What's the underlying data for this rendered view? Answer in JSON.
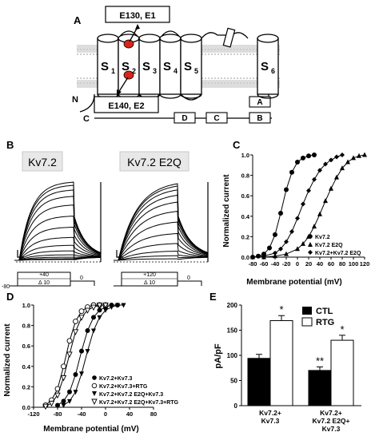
{
  "panels": {
    "A": "A",
    "B": "B",
    "C": "C",
    "D": "D",
    "E": "E"
  },
  "topology": {
    "segments": [
      "S",
      "S",
      "S",
      "S",
      "S",
      "S"
    ],
    "subscripts": [
      "1",
      "2",
      "3",
      "4",
      "5",
      "6"
    ],
    "box_top": "E130, E1",
    "box_bottom": "E140, E2",
    "n_label": "N",
    "c_label": "C",
    "helices": [
      "A",
      "B",
      "C",
      "D"
    ]
  },
  "traces": {
    "label_left": "Kv7.2",
    "label_right": "Kv7.2 E2Q",
    "protocol_left": {
      "top": "+40",
      "step": "Δ 10",
      "hold": "-80",
      "tail": "0"
    },
    "protocol_right": {
      "top": "+120",
      "step": "Δ 10",
      "hold": "-80",
      "tail": "0"
    },
    "left_amplitudes": [
      0.01,
      0.02,
      0.04,
      0.07,
      0.12,
      0.19,
      0.29,
      0.42,
      0.56,
      0.7,
      0.81,
      0.89,
      0.95,
      0.99
    ],
    "right_amplitudes": [
      0.02,
      0.06,
      0.12,
      0.22,
      0.35,
      0.5,
      0.64,
      0.76,
      0.85,
      0.92,
      0.97,
      1.0
    ]
  },
  "chart_data": [
    {
      "type": "scatter",
      "panel": "C",
      "xlabel": "Membrane potential (mV)",
      "ylabel": "Normalized current",
      "xlim": [
        -80,
        120
      ],
      "ylim": [
        0,
        1.0
      ],
      "xticks": [
        "-80",
        "-60",
        "-40",
        "-20",
        "0",
        "20",
        "40",
        "60",
        "80",
        "100",
        "120"
      ],
      "yticks": [
        "0.0",
        "0.2",
        "0.4",
        "0.6",
        "0.8",
        "1.0"
      ],
      "legend_position": "bottom-right",
      "series": [
        {
          "name": "Kv7.2",
          "marker": "circle-filled",
          "x": [
            -80,
            -70,
            -60,
            -50,
            -40,
            -30,
            -20,
            -10,
            0,
            10,
            20,
            30
          ],
          "y": [
            0.0,
            0.01,
            0.03,
            0.09,
            0.22,
            0.43,
            0.66,
            0.83,
            0.93,
            0.97,
            0.99,
            1.0
          ]
        },
        {
          "name": "Kv7.2 E2Q",
          "marker": "triangle-filled",
          "x": [
            -80,
            -60,
            -40,
            -20,
            0,
            10,
            20,
            30,
            40,
            50,
            60,
            70,
            80,
            90,
            100,
            110,
            120
          ],
          "y": [
            0.0,
            0.0,
            0.01,
            0.03,
            0.08,
            0.13,
            0.2,
            0.3,
            0.42,
            0.55,
            0.67,
            0.78,
            0.87,
            0.93,
            0.97,
            0.99,
            1.0
          ]
        },
        {
          "name": "Kv7.2+Kv7.2 E2Q",
          "marker": "diamond-filled",
          "x": [
            -80,
            -60,
            -40,
            -30,
            -20,
            -10,
            0,
            10,
            20,
            30,
            40,
            50,
            60,
            70,
            80
          ],
          "y": [
            0.0,
            0.01,
            0.04,
            0.08,
            0.15,
            0.25,
            0.38,
            0.52,
            0.65,
            0.76,
            0.85,
            0.91,
            0.95,
            0.98,
            1.0
          ]
        }
      ]
    },
    {
      "type": "scatter",
      "panel": "D",
      "xlabel": "Membrane potential (mV)",
      "ylabel": "Normalized current",
      "xlim": [
        -120,
        80
      ],
      "ylim": [
        0,
        1.0
      ],
      "xticks": [
        "-120",
        "-80",
        "-40",
        "0",
        "40",
        "80"
      ],
      "yticks": [
        "0.0",
        "0.2",
        "0.4",
        "0.6",
        "0.8",
        "1.0"
      ],
      "legend_position": "bottom-right",
      "series": [
        {
          "name": "Kv7.2+Kv7.3",
          "marker": "circle-filled",
          "x": [
            -80,
            -70,
            -60,
            -50,
            -40,
            -30,
            -20,
            -10,
            0,
            10,
            20
          ],
          "y": [
            0.02,
            0.06,
            0.15,
            0.32,
            0.55,
            0.75,
            0.88,
            0.95,
            0.98,
            1.0,
            1.0
          ]
        },
        {
          "name": "Kv7.2+Kv7.3+RTG",
          "marker": "circle-open",
          "x": [
            -100,
            -90,
            -80,
            -70,
            -60,
            -50,
            -40,
            -30,
            -20,
            -10,
            0
          ],
          "y": [
            0.02,
            0.07,
            0.18,
            0.4,
            0.65,
            0.84,
            0.94,
            0.98,
            1.0,
            1.0,
            1.0
          ]
        },
        {
          "name": "Kv7.2+Kv7.2 E2Q+Kv7.3",
          "marker": "triangle-down-filled",
          "x": [
            -70,
            -60,
            -50,
            -40,
            -30,
            -20,
            -10,
            0,
            10,
            20,
            30
          ],
          "y": [
            0.02,
            0.06,
            0.15,
            0.33,
            0.55,
            0.75,
            0.88,
            0.95,
            0.98,
            1.0,
            1.0
          ]
        },
        {
          "name": "Kv7.2+Kv7.2 E2Q+Kv7.3+RTG",
          "marker": "triangle-down-open",
          "x": [
            -100,
            -90,
            -80,
            -70,
            -60,
            -50,
            -40,
            -30,
            -20,
            -10,
            0
          ],
          "y": [
            0.01,
            0.04,
            0.12,
            0.29,
            0.52,
            0.74,
            0.88,
            0.95,
            0.98,
            1.0,
            1.0
          ]
        }
      ]
    },
    {
      "type": "bar",
      "panel": "E",
      "ylabel": "pA/pF",
      "ylim": [
        0,
        200
      ],
      "yticks": [
        "0",
        "50",
        "100",
        "150",
        "200"
      ],
      "categories": [
        [
          "Kv7.2+",
          "Kv7.3"
        ],
        [
          "Kv7.2+",
          "Kv7.2 E2Q+",
          "Kv7.3"
        ]
      ],
      "legend_position": "top-right",
      "series": [
        {
          "name": "CTL",
          "color": "#000000",
          "values": [
            94,
            70
          ],
          "errors": [
            8,
            7
          ],
          "stars": [
            "",
            "**"
          ]
        },
        {
          "name": "RTG",
          "color": "#ffffff",
          "values": [
            169,
            130
          ],
          "errors": [
            10,
            10
          ],
          "stars": [
            "*",
            "*"
          ]
        }
      ]
    }
  ]
}
